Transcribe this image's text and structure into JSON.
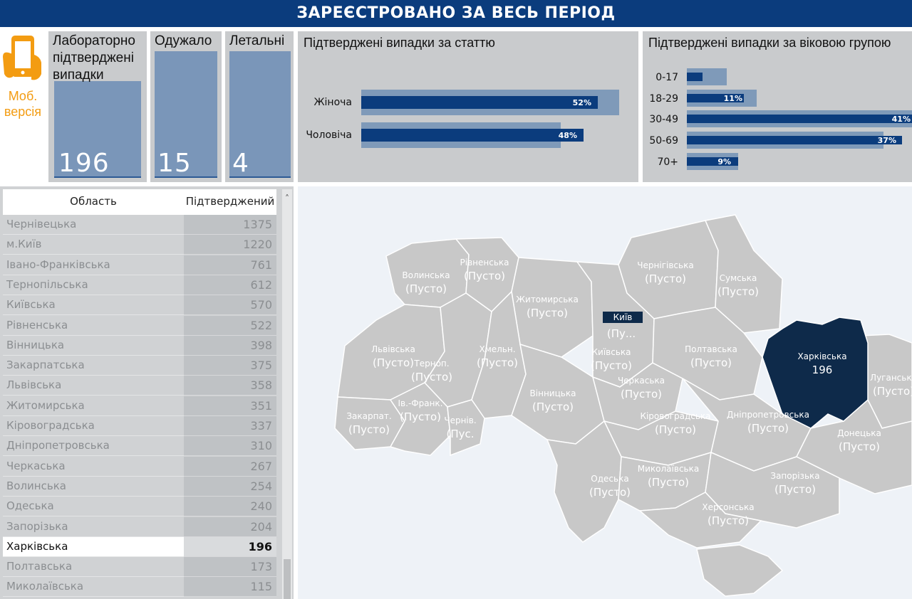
{
  "header": {
    "title": "ЗАРЕЄСТРОВАНО ЗА ВЕСЬ ПЕРІОД"
  },
  "mobile": {
    "label_line1": "Моб.",
    "label_line2": "версія",
    "icon": "smartphone-hand-icon",
    "color": "#f39c12"
  },
  "kpis": [
    {
      "title": "Лабораторно підтверджені випадки",
      "value": "196"
    },
    {
      "title": "Одужало",
      "value": "15"
    },
    {
      "title": "Летальні",
      "value": "4"
    }
  ],
  "gender_chart": {
    "title": "Підтверджені випадки за статтю",
    "rows": [
      {
        "label": "Жіноча",
        "value": "52%"
      },
      {
        "label": "Чоловіча",
        "value": "48%"
      }
    ]
  },
  "age_chart": {
    "title": "Підтверджені випадки за віковою групою",
    "rows": [
      {
        "label": "0-17",
        "value": ""
      },
      {
        "label": "18-29",
        "value": "11%"
      },
      {
        "label": "30-49",
        "value": "41%"
      },
      {
        "label": "50-69",
        "value": "37%"
      },
      {
        "label": "70+",
        "value": "9%"
      }
    ]
  },
  "table": {
    "col_region": "Область",
    "col_confirmed": "Підтверджений",
    "rows": [
      {
        "region": "Чернівецька",
        "value": "1375"
      },
      {
        "region": "м.Київ",
        "value": "1220"
      },
      {
        "region": "Івано-Франківська",
        "value": "761"
      },
      {
        "region": "Тернопільська",
        "value": "612"
      },
      {
        "region": "Київська",
        "value": "570"
      },
      {
        "region": "Рівненська",
        "value": "522"
      },
      {
        "region": "Вінницька",
        "value": "398"
      },
      {
        "region": "Закарпатська",
        "value": "375"
      },
      {
        "region": "Львівська",
        "value": "358"
      },
      {
        "region": "Житомирська",
        "value": "351"
      },
      {
        "region": "Кіровоградська",
        "value": "337"
      },
      {
        "region": "Дніпропетровська",
        "value": "310"
      },
      {
        "region": "Черкаська",
        "value": "267"
      },
      {
        "region": "Волинська",
        "value": "254"
      },
      {
        "region": "Одеська",
        "value": "240"
      },
      {
        "region": "Запорізька",
        "value": "204"
      },
      {
        "region": "Харківська",
        "value": "196",
        "selected": true
      },
      {
        "region": "Полтавська",
        "value": "173"
      },
      {
        "region": "Миколаївська",
        "value": "115"
      }
    ]
  },
  "map": {
    "empty": "(Пусто)",
    "kyiv_tag": "Київ",
    "selected_color": "#0e2a4a",
    "region_color": "#c8c8c8",
    "regions": [
      {
        "name": "Волинська",
        "value": "(Пусто)"
      },
      {
        "name": "Рівненська",
        "value": "(Пусто)"
      },
      {
        "name": "Житомирська",
        "value": "(Пусто)"
      },
      {
        "name": "Чернігівська",
        "value": "(Пусто)"
      },
      {
        "name": "Сумська",
        "value": "(Пусто)"
      },
      {
        "name": "Львівська",
        "value": "(Пусто)"
      },
      {
        "name": "Терноп.",
        "value": "(Пусто)"
      },
      {
        "name": "Хмельн.",
        "value": "(Пусто)"
      },
      {
        "name": "Київська",
        "value": "(Пусто)"
      },
      {
        "name": "Полтавська",
        "value": "(Пусто)"
      },
      {
        "name": "Харківська",
        "value": "196"
      },
      {
        "name": "Луганська",
        "value": "(Пусто)"
      },
      {
        "name": "Вінницька",
        "value": "(Пусто)"
      },
      {
        "name": "Черкаська",
        "value": "(Пусто)"
      },
      {
        "name": "Закарпат.",
        "value": "(Пусто)"
      },
      {
        "name": "Ів.-Франк.",
        "value": "(Пусто)"
      },
      {
        "name": "Чернів.",
        "value": "(Пус."
      },
      {
        "name": "Кіровоградська",
        "value": "(Пусто)"
      },
      {
        "name": "Дніпропетровська",
        "value": "(Пусто)"
      },
      {
        "name": "Донецька",
        "value": "(Пусто)"
      },
      {
        "name": "Одеська",
        "value": "(Пусто)"
      },
      {
        "name": "Миколаївська",
        "value": "(Пусто)"
      },
      {
        "name": "Запорізька",
        "value": "(Пусто)"
      },
      {
        "name": "Херсонська",
        "value": "(Пусто)"
      },
      {
        "name": "Київ",
        "value": "(Пу..."
      }
    ]
  }
}
